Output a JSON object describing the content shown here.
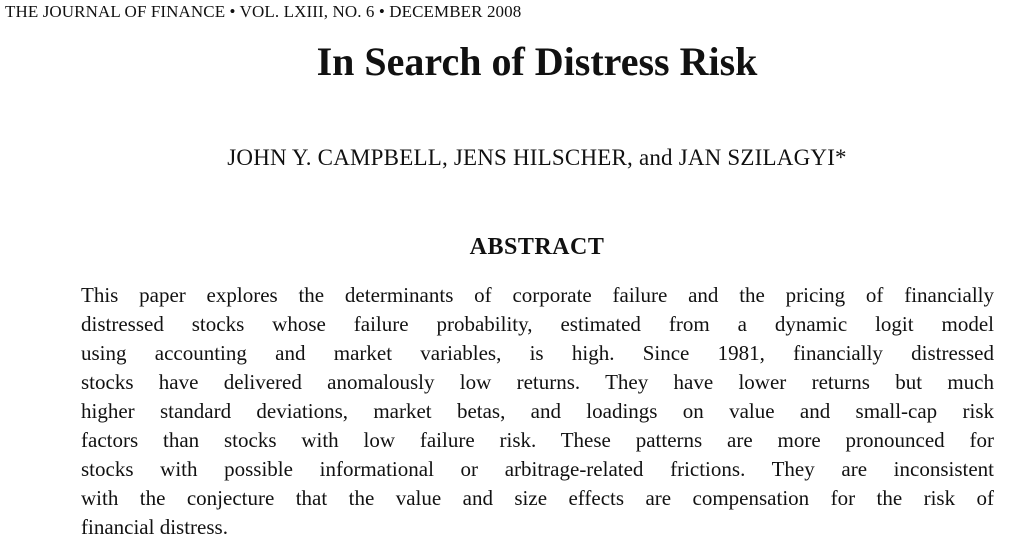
{
  "running_head": "THE JOURNAL OF FINANCE • VOL. LXIII, NO. 6 •  DECEMBER 2008",
  "title": "In Search of Distress Risk",
  "authors": "JOHN Y. CAMPBELL, JENS HILSCHER, and JAN SZILAGYI*",
  "abstract": {
    "heading": "ABSTRACT",
    "lines": [
      "This paper explores the determinants of corporate failure and the pricing of financially",
      "distressed stocks whose failure probability, estimated from a dynamic logit model",
      "using accounting and market variables, is high. Since 1981, financially distressed",
      "stocks have delivered anomalously low returns. They have lower returns but much",
      "higher standard deviations, market betas, and loadings on value and small-cap risk",
      "factors than stocks with low failure risk. These patterns are more pronounced for",
      "stocks with possible informational or arbitrage-related frictions. They are inconsistent",
      "with the conjecture that the value and size effects are compensation for the risk of",
      "financial distress."
    ]
  }
}
